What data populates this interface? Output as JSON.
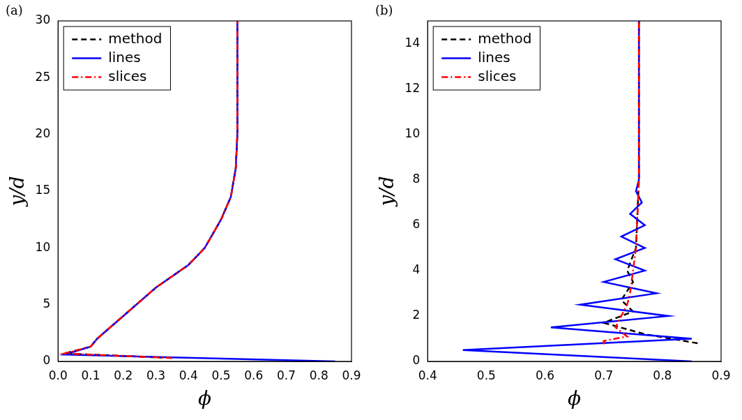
{
  "chart_data": [
    {
      "type": "line",
      "panel_label": "(a)",
      "x_label": "ϕ",
      "y_label": "y/d",
      "xlim": [
        0,
        0.9
      ],
      "xticks": [
        {
          "value": 0,
          "label": "0.0"
        },
        0.1,
        0.2,
        0.3,
        0.4,
        0.5,
        0.6,
        0.7,
        0.8,
        0.9
      ],
      "ylim": [
        0,
        30
      ],
      "yticks": [
        0,
        5,
        10,
        15,
        20,
        25,
        30
      ],
      "grid": false,
      "legend": "upper left",
      "series": [
        {
          "name": "method",
          "color": "#000000",
          "line_style": "dashed",
          "values": [
            [
              0.35,
              0.3
            ],
            [
              0.1,
              0.6
            ],
            [
              0.02,
              0.7
            ],
            [
              0.1,
              1.3
            ],
            [
              0.12,
              2
            ],
            [
              0.2,
              4
            ],
            [
              0.3,
              6.5
            ],
            [
              0.4,
              8.5
            ],
            [
              0.45,
              10
            ],
            [
              0.5,
              12.5
            ],
            [
              0.53,
              14.5
            ],
            [
              0.545,
              17
            ],
            [
              0.55,
              20
            ],
            [
              0.55,
              30
            ]
          ]
        },
        {
          "name": "lines",
          "color": "#0000ff",
          "line_style": "solid",
          "values": [
            [
              0.85,
              0
            ],
            [
              0.35,
              0.35
            ],
            [
              0.02,
              0.6
            ],
            [
              0.1,
              1.3
            ],
            [
              0.12,
              2
            ],
            [
              0.2,
              4
            ],
            [
              0.3,
              6.5
            ],
            [
              0.4,
              8.5
            ],
            [
              0.45,
              10
            ],
            [
              0.5,
              12.5
            ],
            [
              0.53,
              14.5
            ],
            [
              0.545,
              17
            ],
            [
              0.55,
              20
            ],
            [
              0.55,
              30
            ]
          ]
        },
        {
          "name": "slices",
          "color": "#ff0000",
          "line_style": "dashdot",
          "values": [
            [
              0.35,
              0.3
            ],
            [
              0.1,
              0.6
            ],
            [
              0.02,
              0.7
            ],
            [
              0.1,
              1.3
            ],
            [
              0.12,
              2
            ],
            [
              0.2,
              4
            ],
            [
              0.3,
              6.5
            ],
            [
              0.4,
              8.5
            ],
            [
              0.45,
              10
            ],
            [
              0.5,
              12.5
            ],
            [
              0.53,
              14.5
            ],
            [
              0.545,
              17
            ],
            [
              0.55,
              20
            ],
            [
              0.55,
              30
            ]
          ]
        }
      ]
    },
    {
      "type": "line",
      "panel_label": "(b)",
      "x_label": "ϕ",
      "y_label": "y/d",
      "xlim": [
        0.4,
        0.9
      ],
      "xticks": [
        0.4,
        0.5,
        0.6,
        0.7,
        0.8,
        0.9
      ],
      "ylim": [
        0,
        15
      ],
      "yticks": [
        0,
        2,
        4,
        6,
        8,
        10,
        12,
        14
      ],
      "grid": false,
      "legend": "upper left",
      "series": [
        {
          "name": "method",
          "color": "#000000",
          "line_style": "dashed",
          "values": [
            [
              0.86,
              0.8
            ],
            [
              0.77,
              1.2
            ],
            [
              0.7,
              1.7
            ],
            [
              0.75,
              2.2
            ],
            [
              0.73,
              2.7
            ],
            [
              0.75,
              3.5
            ],
            [
              0.74,
              4
            ],
            [
              0.755,
              5
            ],
            [
              0.76,
              8
            ],
            [
              0.76,
              15
            ]
          ]
        },
        {
          "name": "lines",
          "color": "#0000ff",
          "line_style": "solid",
          "values": [
            [
              0.85,
              0
            ],
            [
              0.46,
              0.5
            ],
            [
              0.85,
              1.0
            ],
            [
              0.61,
              1.5
            ],
            [
              0.81,
              2.0
            ],
            [
              0.66,
              2.5
            ],
            [
              0.79,
              3.0
            ],
            [
              0.7,
              3.5
            ],
            [
              0.77,
              4.0
            ],
            [
              0.72,
              4.5
            ],
            [
              0.77,
              5.0
            ],
            [
              0.73,
              5.5
            ],
            [
              0.77,
              6.0
            ],
            [
              0.745,
              6.5
            ],
            [
              0.765,
              7
            ],
            [
              0.755,
              7.5
            ],
            [
              0.76,
              8
            ],
            [
              0.76,
              15
            ]
          ]
        },
        {
          "name": "slices",
          "color": "#ff0000",
          "line_style": "dashdot",
          "values": [
            [
              0.7,
              0.75
            ],
            [
              0.7,
              0.9
            ],
            [
              0.74,
              1.1
            ],
            [
              0.72,
              1.5
            ],
            [
              0.73,
              2
            ],
            [
              0.74,
              2.5
            ],
            [
              0.745,
              3
            ],
            [
              0.75,
              4
            ],
            [
              0.755,
              5
            ],
            [
              0.76,
              8
            ],
            [
              0.76,
              15
            ]
          ]
        }
      ]
    }
  ]
}
